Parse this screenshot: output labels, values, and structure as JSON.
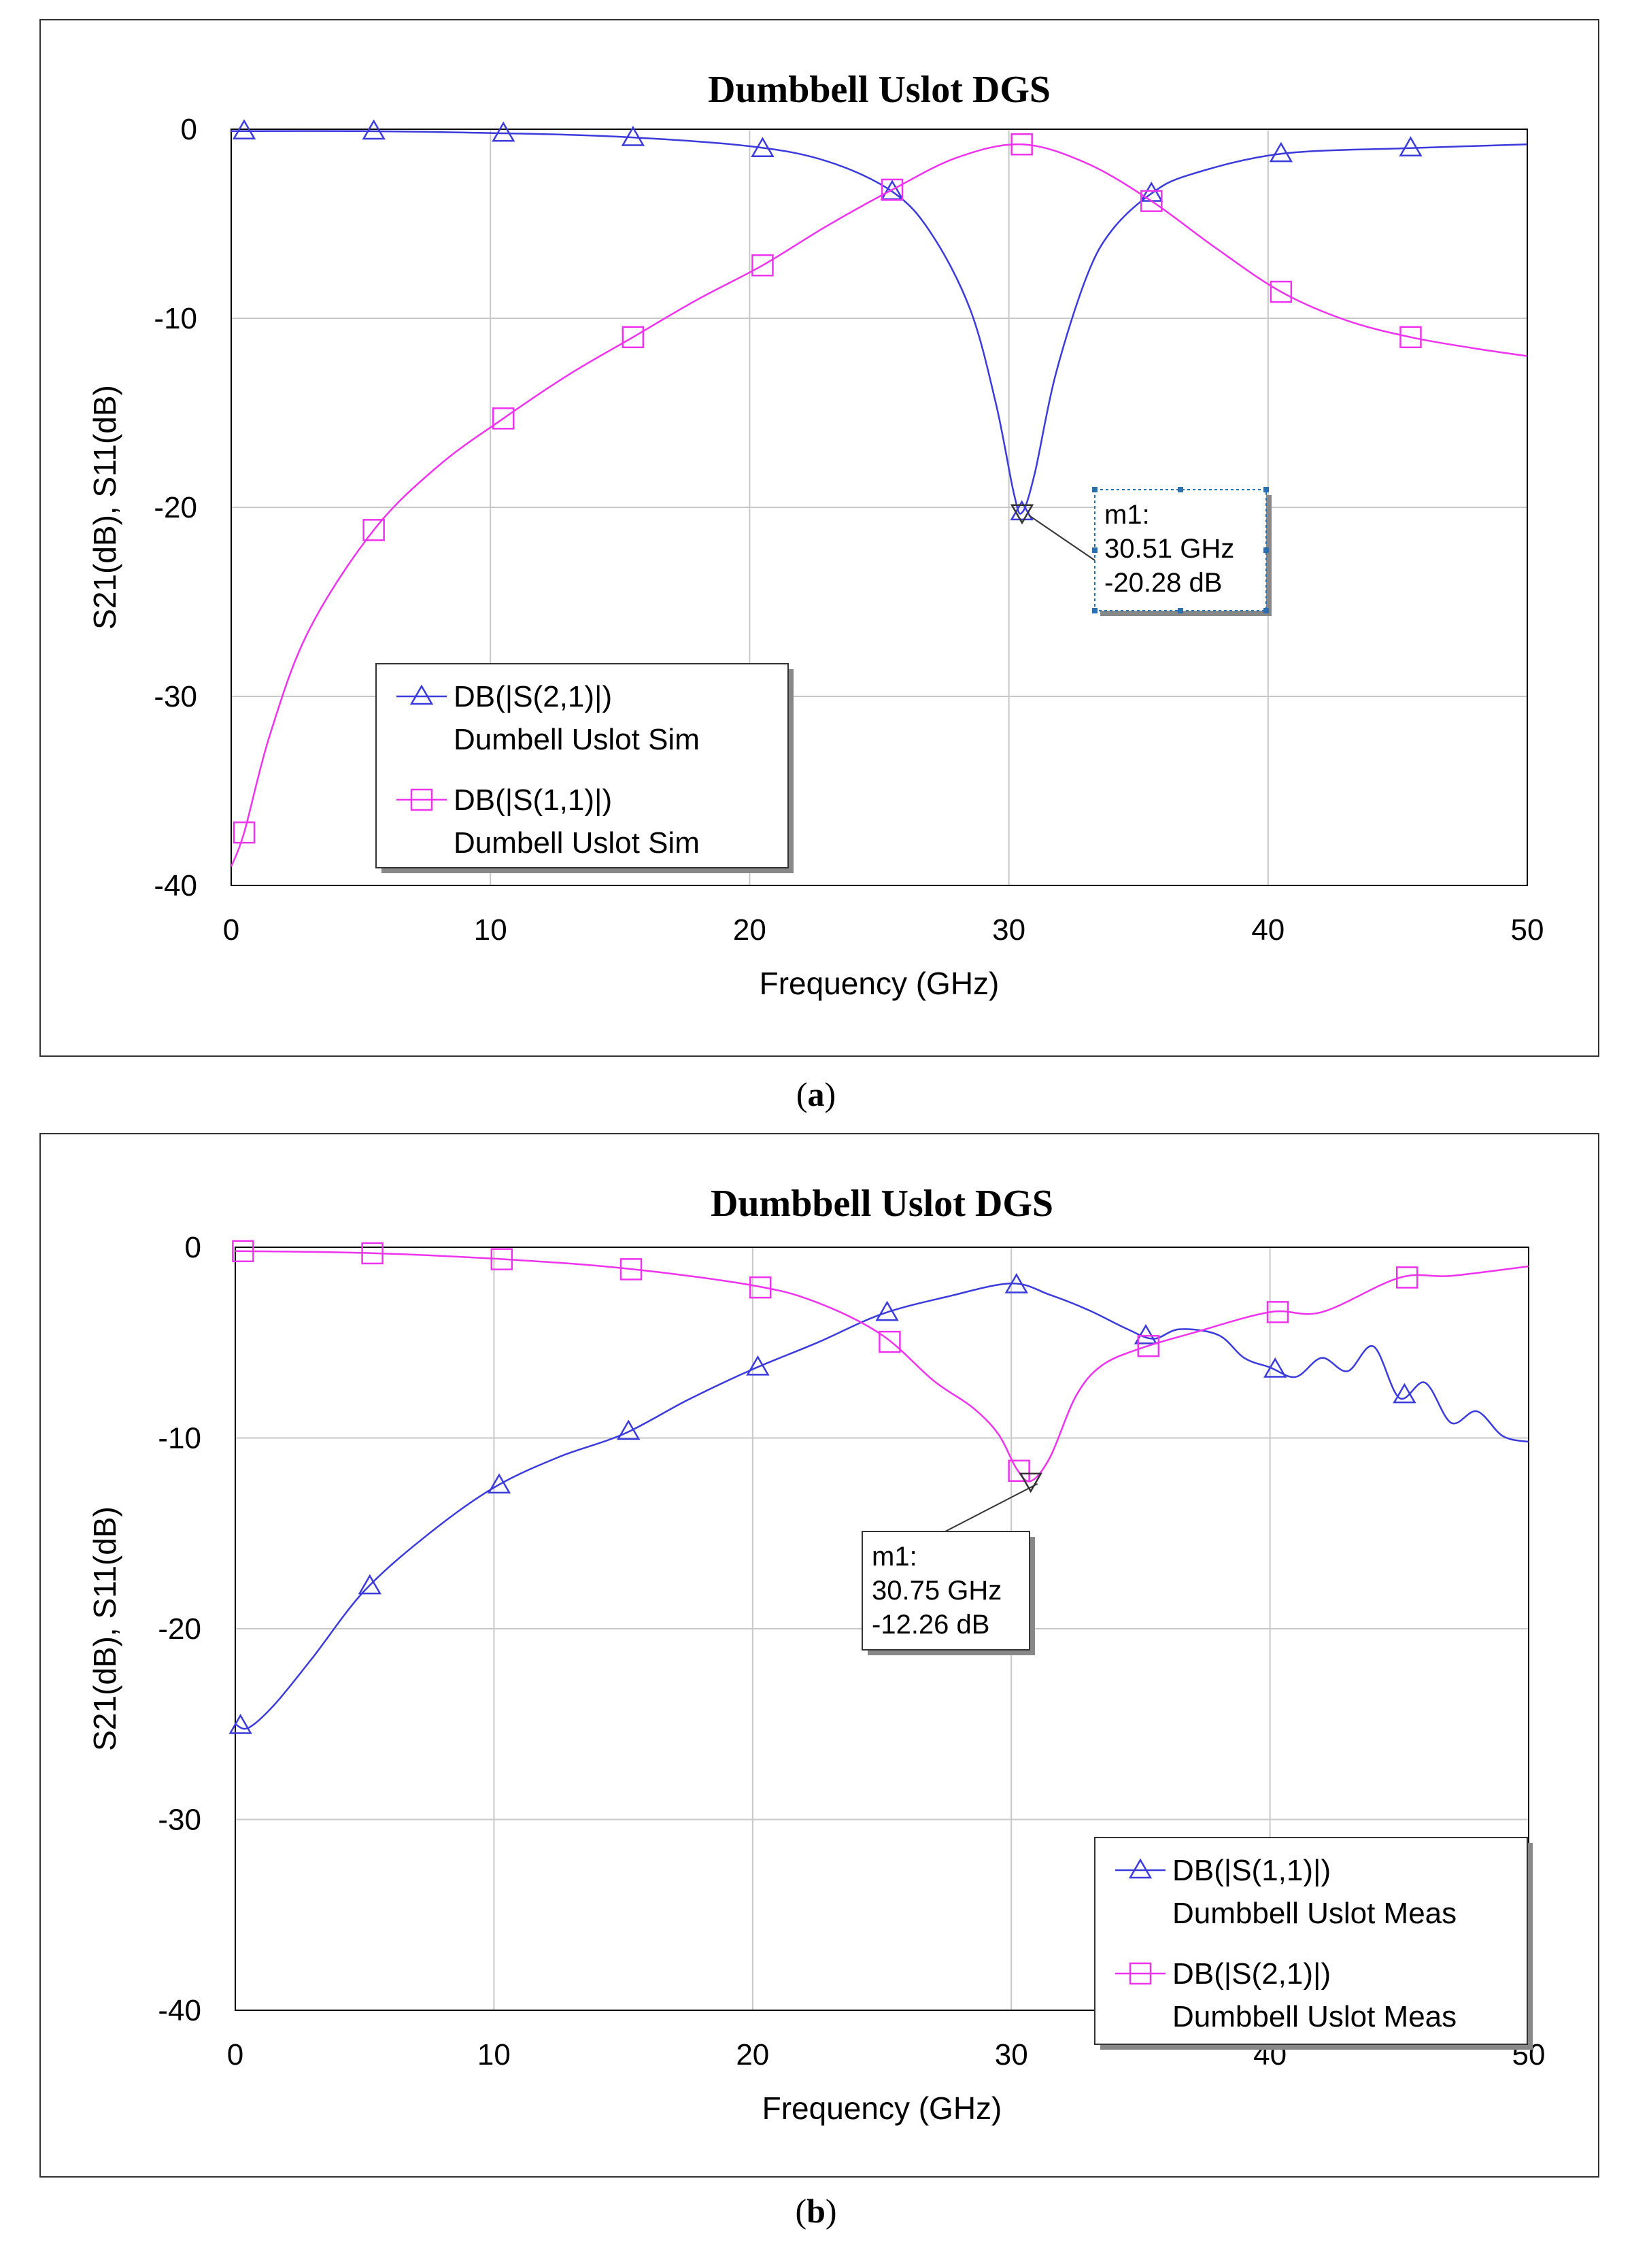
{
  "captions": {
    "a": "a",
    "b": "b"
  },
  "colors": {
    "blue": "#3b3bdc",
    "magenta": "#ee33ee",
    "grid": "#c8c8c8"
  },
  "chart_data": [
    {
      "type": "line",
      "title": "Dumbbell Uslot DGS",
      "xlabel": "Frequency (GHz)",
      "ylabel": "S21(dB), S11(dB)",
      "xlim": [
        0,
        50
      ],
      "ylim": [
        -40,
        0
      ],
      "xticks": [
        0,
        10,
        20,
        30,
        40,
        50
      ],
      "yticks": [
        0,
        -10,
        -20,
        -30,
        -40
      ],
      "grid": true,
      "legend_position": "bottom-left",
      "series": [
        {
          "name": "DB(|S(2,1)|)",
          "subname": "Dumbell Uslot Sim",
          "color": "#3b3bdc",
          "marker": "triangle",
          "x": [
            0,
            5,
            10,
            15,
            20,
            23,
            25.5,
            27,
            28.5,
            29.5,
            30.2,
            30.51,
            31,
            31.8,
            33,
            34,
            35.5,
            37,
            40.5,
            45.5,
            50
          ],
          "y": [
            -0.1,
            -0.1,
            -0.2,
            -0.4,
            -0.9,
            -1.7,
            -3.3,
            -5.5,
            -9.5,
            -14.5,
            -19.3,
            -20.28,
            -18.2,
            -13,
            -7.8,
            -5.3,
            -3.4,
            -2.4,
            -1.3,
            -1.0,
            -0.8
          ],
          "marker_x": [
            0.5,
            5.5,
            10.5,
            15.5,
            20.5,
            25.5,
            30.5,
            35.5,
            40.5,
            45.5
          ]
        },
        {
          "name": "DB(|S(1,1)|)",
          "subname": "Dumbell Uslot Sim",
          "color": "#ee33ee",
          "marker": "square",
          "x": [
            0,
            0.5,
            1.5,
            3,
            5.5,
            8,
            10.5,
            13,
            15.5,
            18,
            20.5,
            23,
            25.5,
            28,
            30.5,
            33,
            35.5,
            38,
            40.5,
            43,
            45.5,
            48,
            50
          ],
          "y": [
            -39,
            -37.2,
            -32,
            -26.5,
            -21.2,
            -17.8,
            -15.3,
            -13,
            -11,
            -9,
            -7.2,
            -5.1,
            -3.2,
            -1.5,
            -0.8,
            -1.8,
            -3.8,
            -6.3,
            -8.6,
            -10.1,
            -11,
            -11.6,
            -12
          ],
          "marker_x": [
            0.5,
            5.5,
            10.5,
            15.5,
            20.5,
            25.5,
            30.5,
            35.5,
            40.5,
            45.5
          ]
        }
      ],
      "marker": {
        "label": "m1:",
        "freq": "30.51 GHz",
        "value": "-20.28 dB",
        "x": 30.51,
        "y": -20.28
      }
    },
    {
      "type": "line",
      "title": "Dumbbell Uslot DGS",
      "xlabel": "Frequency (GHz)",
      "ylabel": "S21(dB), S11(dB)",
      "xlim": [
        0,
        50
      ],
      "ylim": [
        -40,
        0
      ],
      "xticks": [
        0,
        10,
        20,
        30,
        40,
        50
      ],
      "yticks": [
        0,
        -10,
        -20,
        -30,
        -40
      ],
      "grid": true,
      "legend_position": "bottom-right",
      "series": [
        {
          "name": "DB(|S(1,1)|)",
          "subname": "Dumbbell Uslot Meas",
          "color": "#3b3bdc",
          "marker": "triangle",
          "x": [
            0,
            0.5,
            1.5,
            3,
            5,
            7.5,
            10,
            12.5,
            15,
            17.5,
            20,
            22.5,
            25,
            27.5,
            30,
            31.5,
            33,
            34.5,
            35.5,
            36.5,
            38,
            39,
            40,
            41,
            42,
            43,
            44,
            45,
            46,
            47,
            48,
            49,
            50
          ],
          "y": [
            -25,
            -25.2,
            -24,
            -21.5,
            -18,
            -15,
            -12.6,
            -11,
            -9.8,
            -8,
            -6.4,
            -5,
            -3.5,
            -2.6,
            -1.9,
            -2.5,
            -3.3,
            -4.3,
            -4.8,
            -4.3,
            -4.6,
            -5.8,
            -6.3,
            -6.8,
            -5.8,
            -6.5,
            -5.2,
            -7.9,
            -7.1,
            -9.2,
            -8.6,
            -9.9,
            -10.2
          ],
          "marker_x": [
            0.2,
            5.2,
            10.2,
            15.2,
            20.2,
            25.2,
            30.2,
            35.2,
            40.2,
            45.2
          ]
        },
        {
          "name": "DB(|S(2,1)|)",
          "subname": "Dumbbell Uslot Meas",
          "color": "#ee33ee",
          "marker": "square",
          "x": [
            0,
            5,
            10,
            15,
            20,
            22.5,
            25,
            27,
            28.5,
            29.5,
            30.2,
            30.75,
            31.5,
            32.5,
            33.5,
            35,
            37,
            40,
            42,
            45,
            47,
            50
          ],
          "y": [
            -0.2,
            -0.3,
            -0.6,
            -1.1,
            -2,
            -2.9,
            -4.6,
            -7,
            -8.4,
            -9.8,
            -11.6,
            -12.26,
            -11,
            -7.8,
            -6.2,
            -5.3,
            -4.5,
            -3.4,
            -3.4,
            -1.6,
            -1.5,
            -1.0
          ],
          "marker_x": [
            0.3,
            5.3,
            10.3,
            15.3,
            20.3,
            25.3,
            30.3,
            35.3,
            40.3,
            45.3
          ]
        }
      ],
      "marker": {
        "label": "m1:",
        "freq": "30.75 GHz",
        "value": "-12.26 dB",
        "x": 30.75,
        "y": -12.26
      }
    }
  ]
}
